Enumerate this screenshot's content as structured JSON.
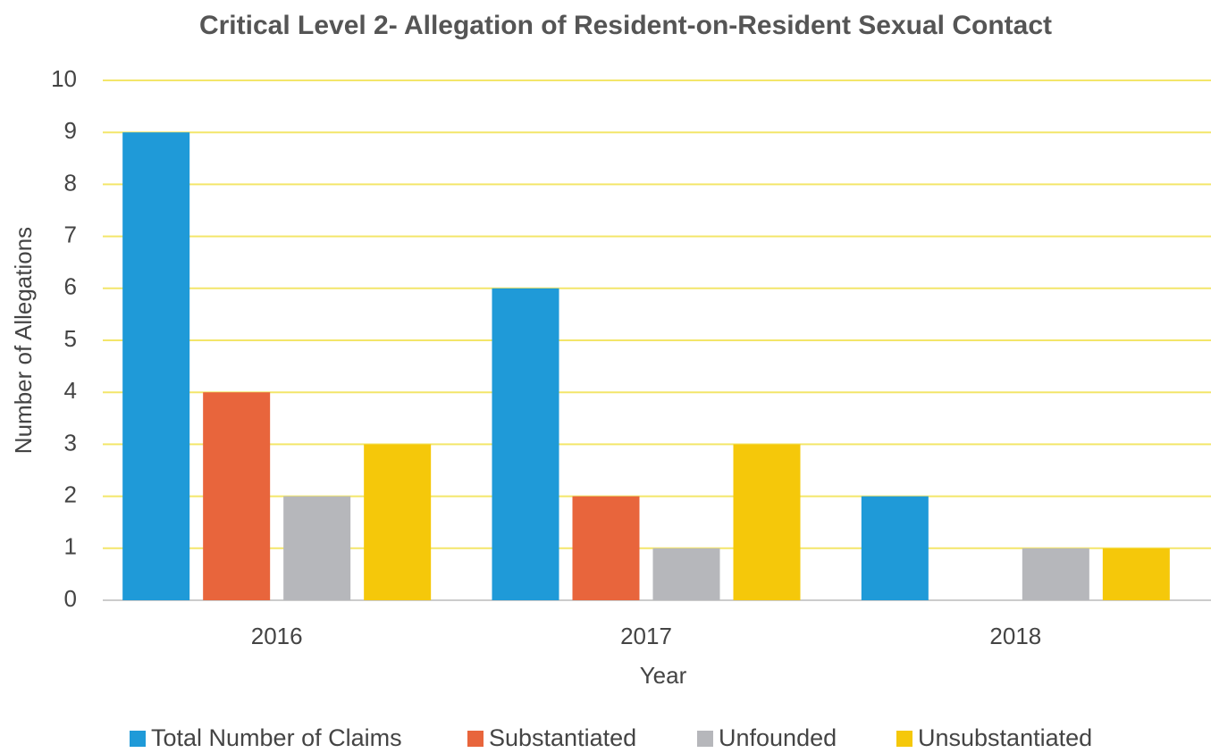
{
  "chart_data": {
    "type": "bar",
    "title": "Critical Level 2- Allegation of Resident-on-Resident Sexual Contact",
    "x_label": "Year",
    "y_label": "Number of Allegations",
    "categories": [
      "2016",
      "2017",
      "2018"
    ],
    "series": [
      {
        "name": "Total Number of Claims",
        "color": "#1f9ad8",
        "values": [
          9,
          6,
          2
        ]
      },
      {
        "name": "Substantiated",
        "color": "#e8653c",
        "values": [
          4,
          2,
          0
        ]
      },
      {
        "name": "Unfounded",
        "color": "#b6b7bb",
        "values": [
          2,
          1,
          1
        ]
      },
      {
        "name": "Unsubstantiated",
        "color": "#f5c80a",
        "values": [
          3,
          3,
          1
        ]
      }
    ],
    "ylim": [
      0,
      10
    ],
    "yticks": [
      0,
      1,
      2,
      3,
      4,
      5,
      6,
      7,
      8,
      9,
      10
    ],
    "grid": true,
    "grid_color": "#f3e66a",
    "legend": "bottom"
  }
}
